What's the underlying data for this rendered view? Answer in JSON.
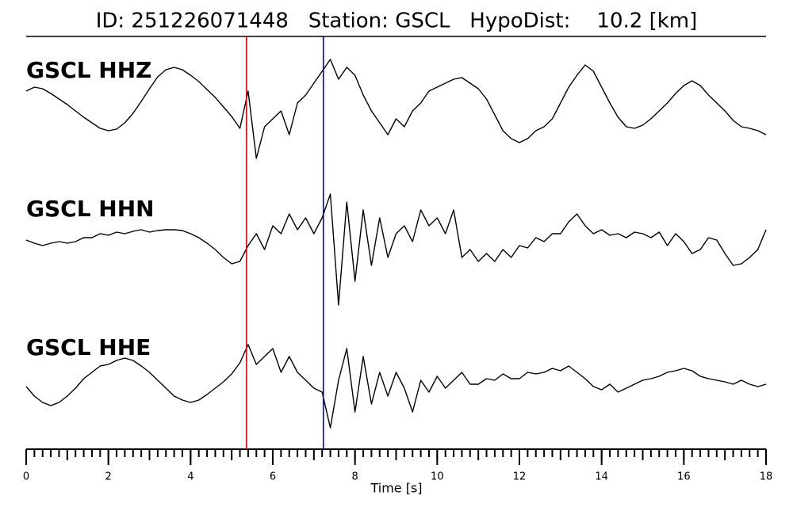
{
  "chart_data": {
    "type": "line",
    "title": "ID: 251226071448   Station: GSCL   HypoDist:    10.2 [km]",
    "xlabel": "Time [s]",
    "xlim": [
      0,
      18
    ],
    "ylim": [
      -85,
      85
    ],
    "xticks": [
      0,
      2,
      4,
      6,
      8,
      10,
      12,
      14,
      16,
      18
    ],
    "xminorticks": [
      0,
      0.2,
      0.4,
      0.6,
      0.8,
      1,
      1.2,
      1.4,
      1.6,
      1.8,
      2,
      2.2,
      2.4,
      2.6,
      2.8,
      3,
      3.2,
      3.4,
      3.6,
      3.8,
      4,
      4.2,
      4.4,
      4.6,
      4.8,
      5,
      5.2,
      5.4,
      5.6,
      5.8,
      6,
      6.2,
      6.4,
      6.6,
      6.8,
      7,
      7.2,
      7.4,
      7.6,
      7.8,
      8,
      8.2,
      8.4,
      8.6,
      8.8,
      9,
      9.2,
      9.4,
      9.6,
      9.8,
      10,
      10.2,
      10.4,
      10.6,
      10.8,
      11,
      11.2,
      11.4,
      11.6,
      11.8,
      12,
      12.2,
      12.4,
      12.6,
      12.8,
      13,
      13.2,
      13.4,
      13.6,
      13.8,
      14,
      14.2,
      14.4,
      14.6,
      14.8,
      15,
      15.2,
      15.4,
      15.6,
      15.8,
      16,
      16.2,
      16.4,
      16.6,
      16.8,
      17,
      17.2,
      17.4,
      17.6,
      17.8,
      18
    ],
    "x": [
      0,
      0.2,
      0.4,
      0.6,
      0.8,
      1,
      1.2,
      1.4,
      1.6,
      1.8,
      2,
      2.2,
      2.4,
      2.6,
      2.8,
      3,
      3.2,
      3.4,
      3.6,
      3.8,
      4,
      4.2,
      4.4,
      4.6,
      4.8,
      5,
      5.2,
      5.4,
      5.6,
      5.8,
      6,
      6.2,
      6.4,
      6.6,
      6.8,
      7,
      7.2,
      7.4,
      7.6,
      7.8,
      8,
      8.2,
      8.4,
      8.6,
      8.8,
      9,
      9.2,
      9.4,
      9.6,
      9.8,
      10,
      10.2,
      10.4,
      10.6,
      10.8,
      11,
      11.2,
      11.4,
      11.6,
      11.8,
      12,
      12.2,
      12.4,
      12.6,
      12.8,
      13,
      13.2,
      13.4,
      13.6,
      13.8,
      14,
      14.2,
      14.4,
      14.6,
      14.8,
      15,
      15.2,
      15.4,
      15.6,
      15.8,
      16,
      16.2,
      16.4,
      16.6,
      16.8,
      17,
      17.2,
      17.4,
      17.6,
      17.8,
      18
    ],
    "label_color": "#4e9a06",
    "series": [
      {
        "name": "GSCL HHZ",
        "color": "#000000",
        "values": [
          15,
          20,
          18,
          12,
          5,
          -2,
          -10,
          -18,
          -25,
          -32,
          -35,
          -33,
          -25,
          -13,
          2,
          18,
          33,
          42,
          45,
          42,
          35,
          27,
          17,
          7,
          -5,
          -17,
          -32,
          15,
          -70,
          -30,
          -20,
          -10,
          -40,
          0,
          10,
          25,
          40,
          55,
          30,
          45,
          35,
          10,
          -10,
          -25,
          -40,
          -20,
          -30,
          -10,
          0,
          15,
          20,
          25,
          30,
          32,
          25,
          18,
          5,
          -15,
          -35,
          -45,
          -50,
          -45,
          -35,
          -30,
          -20,
          0,
          20,
          35,
          48,
          40,
          20,
          0,
          -18,
          -30,
          -32,
          -28,
          -20,
          -10,
          0,
          12,
          22,
          28,
          22,
          10,
          0,
          -10,
          -22,
          -30,
          -32,
          -35,
          -40
        ]
      },
      {
        "name": "GSCL HHN",
        "color": "#000000",
        "values": [
          2,
          -2,
          -5,
          -2,
          0,
          -2,
          0,
          5,
          5,
          10,
          8,
          12,
          10,
          13,
          15,
          12,
          14,
          15,
          15,
          14,
          10,
          5,
          -2,
          -10,
          -20,
          -28,
          -25,
          -5,
          10,
          -10,
          20,
          10,
          35,
          15,
          30,
          10,
          30,
          60,
          -80,
          50,
          -50,
          40,
          -30,
          30,
          -20,
          10,
          20,
          0,
          40,
          20,
          30,
          10,
          40,
          -20,
          -10,
          -25,
          -15,
          -25,
          -10,
          -20,
          -5,
          -8,
          5,
          0,
          10,
          10,
          25,
          35,
          20,
          10,
          15,
          8,
          10,
          5,
          12,
          10,
          5,
          12,
          -5,
          10,
          0,
          -15,
          -10,
          5,
          2,
          -15,
          -30,
          -28,
          -20,
          -10,
          15
        ]
      },
      {
        "name": "GSCL HHE",
        "color": "#000000",
        "values": [
          -8,
          -20,
          -28,
          -32,
          -28,
          -20,
          -10,
          2,
          10,
          18,
          20,
          25,
          28,
          25,
          18,
          10,
          0,
          -10,
          -20,
          -25,
          -28,
          -25,
          -18,
          -10,
          -2,
          8,
          22,
          45,
          20,
          30,
          40,
          10,
          30,
          10,
          0,
          -10,
          -15,
          -60,
          0,
          40,
          -40,
          30,
          -30,
          10,
          -20,
          10,
          -10,
          -40,
          0,
          -15,
          5,
          -10,
          0,
          10,
          -5,
          -5,
          2,
          0,
          8,
          2,
          2,
          10,
          8,
          10,
          15,
          12,
          18,
          10,
          2,
          -8,
          -12,
          -5,
          -15,
          -10,
          -5,
          0,
          2,
          5,
          10,
          12,
          15,
          12,
          5,
          2,
          0,
          -2,
          -5,
          0,
          -5,
          -8,
          -5
        ]
      }
    ],
    "picks": [
      {
        "x": 5.36,
        "color": "#e8000b"
      },
      {
        "x": 7.23,
        "color": "#0000cc"
      }
    ]
  }
}
